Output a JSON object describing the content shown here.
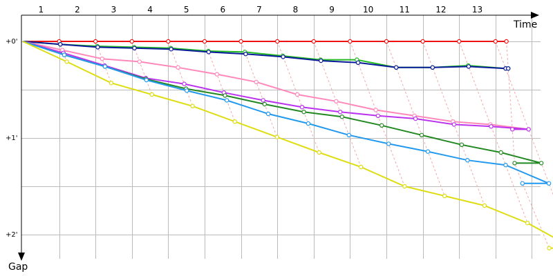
{
  "chart_data": {
    "type": "line",
    "xlabel": "Time",
    "ylabel": "Gap",
    "x_ticks": [
      "1",
      "2",
      "3",
      "4",
      "5",
      "6",
      "7",
      "8",
      "9",
      "10",
      "11",
      "12",
      "13"
    ],
    "y_ticks": [
      "+0'",
      "+1'",
      "+2'"
    ],
    "ylim_minutes": [
      0,
      2.3
    ],
    "grid": true,
    "series": [
      {
        "color": "#ee1111",
        "finish_time": 13.3,
        "points": [
          [
            0,
            0
          ],
          [
            1,
            0
          ],
          [
            2,
            0
          ],
          [
            3,
            0
          ],
          [
            4,
            0
          ],
          [
            5,
            0
          ],
          [
            6,
            0
          ],
          [
            7,
            0
          ],
          [
            8,
            0
          ],
          [
            9,
            0
          ],
          [
            10,
            0
          ],
          [
            11,
            0
          ],
          [
            12,
            0
          ],
          [
            13,
            0
          ]
        ]
      },
      {
        "color": "#22bb22",
        "finish_time": 13.3,
        "points": [
          [
            0,
            0
          ],
          [
            1,
            0.03
          ],
          [
            2,
            0.05
          ],
          [
            3,
            0.06
          ],
          [
            4,
            0.07
          ],
          [
            5,
            0.1
          ],
          [
            6,
            0.11
          ],
          [
            7,
            0.15
          ],
          [
            8,
            0.19
          ],
          [
            9,
            0.19
          ],
          [
            10,
            0.27
          ],
          [
            11,
            0.27
          ],
          [
            12,
            0.25
          ],
          [
            13,
            0.28
          ]
        ]
      },
      {
        "color": "#0a1a99",
        "finish_time": 13.3,
        "points": [
          [
            0,
            0
          ],
          [
            1,
            0.03
          ],
          [
            2,
            0.06
          ],
          [
            3,
            0.07
          ],
          [
            4,
            0.08
          ],
          [
            5,
            0.11
          ],
          [
            6,
            0.13
          ],
          [
            7,
            0.16
          ],
          [
            8,
            0.2
          ],
          [
            9,
            0.22
          ],
          [
            10,
            0.27
          ],
          [
            11,
            0.27
          ],
          [
            12,
            0.26
          ],
          [
            13,
            0.28
          ]
        ]
      },
      {
        "color": "#ff88bb",
        "finish_time": 13.3,
        "points": [
          [
            0,
            0
          ],
          [
            1,
            0.09
          ],
          [
            2,
            0.18
          ],
          [
            3,
            0.21
          ],
          [
            4,
            0.27
          ],
          [
            5,
            0.34
          ],
          [
            6,
            0.42
          ],
          [
            7,
            0.55
          ],
          [
            8,
            0.62
          ],
          [
            9,
            0.71
          ],
          [
            10,
            0.77
          ],
          [
            11,
            0.83
          ],
          [
            12,
            0.86
          ],
          [
            13,
            0.91
          ]
        ]
      },
      {
        "color": "#bb33ee",
        "finish_time": 13.3,
        "points": [
          [
            0,
            0
          ],
          [
            1,
            0.12
          ],
          [
            2,
            0.25
          ],
          [
            3,
            0.38
          ],
          [
            4,
            0.44
          ],
          [
            5,
            0.53
          ],
          [
            6,
            0.61
          ],
          [
            7,
            0.68
          ],
          [
            8,
            0.73
          ],
          [
            9,
            0.77
          ],
          [
            10,
            0.8
          ],
          [
            11,
            0.86
          ],
          [
            12,
            0.88
          ],
          [
            13,
            0.91
          ]
        ]
      },
      {
        "color": "#228822",
        "finish_time": 13.3,
        "points": [
          [
            0,
            0
          ],
          [
            1,
            0.14
          ],
          [
            2,
            0.26
          ],
          [
            3,
            0.39
          ],
          [
            4,
            0.49
          ],
          [
            5,
            0.56
          ],
          [
            6,
            0.65
          ],
          [
            7,
            0.73
          ],
          [
            8,
            0.78
          ],
          [
            9,
            0.87
          ],
          [
            10,
            0.97
          ],
          [
            11,
            1.07
          ],
          [
            12,
            1.15
          ],
          [
            13,
            1.26
          ]
        ]
      },
      {
        "color": "#2299ee",
        "finish_time": 13.3,
        "points": [
          [
            0,
            0
          ],
          [
            1,
            0.14
          ],
          [
            2,
            0.26
          ],
          [
            3,
            0.4
          ],
          [
            4,
            0.51
          ],
          [
            5,
            0.61
          ],
          [
            6,
            0.75
          ],
          [
            7,
            0.85
          ],
          [
            8,
            0.97
          ],
          [
            9,
            1.06
          ],
          [
            10,
            1.14
          ],
          [
            11,
            1.23
          ],
          [
            12,
            1.28
          ],
          [
            13,
            1.47
          ]
        ]
      },
      {
        "color": "#dddd11",
        "finish_time": 13.3,
        "points": [
          [
            0,
            0
          ],
          [
            1,
            0.21
          ],
          [
            2,
            0.43
          ],
          [
            3,
            0.55
          ],
          [
            4,
            0.67
          ],
          [
            5,
            0.83
          ],
          [
            6,
            0.99
          ],
          [
            7,
            1.15
          ],
          [
            8,
            1.3
          ],
          [
            9,
            1.5
          ],
          [
            10,
            1.6
          ],
          [
            11,
            1.7
          ],
          [
            12,
            1.88
          ],
          [
            13,
            2.14
          ]
        ]
      }
    ]
  },
  "colors": {
    "grid": "#bbbbbb",
    "connector": "#f4a8a8",
    "axis": "#000000"
  }
}
